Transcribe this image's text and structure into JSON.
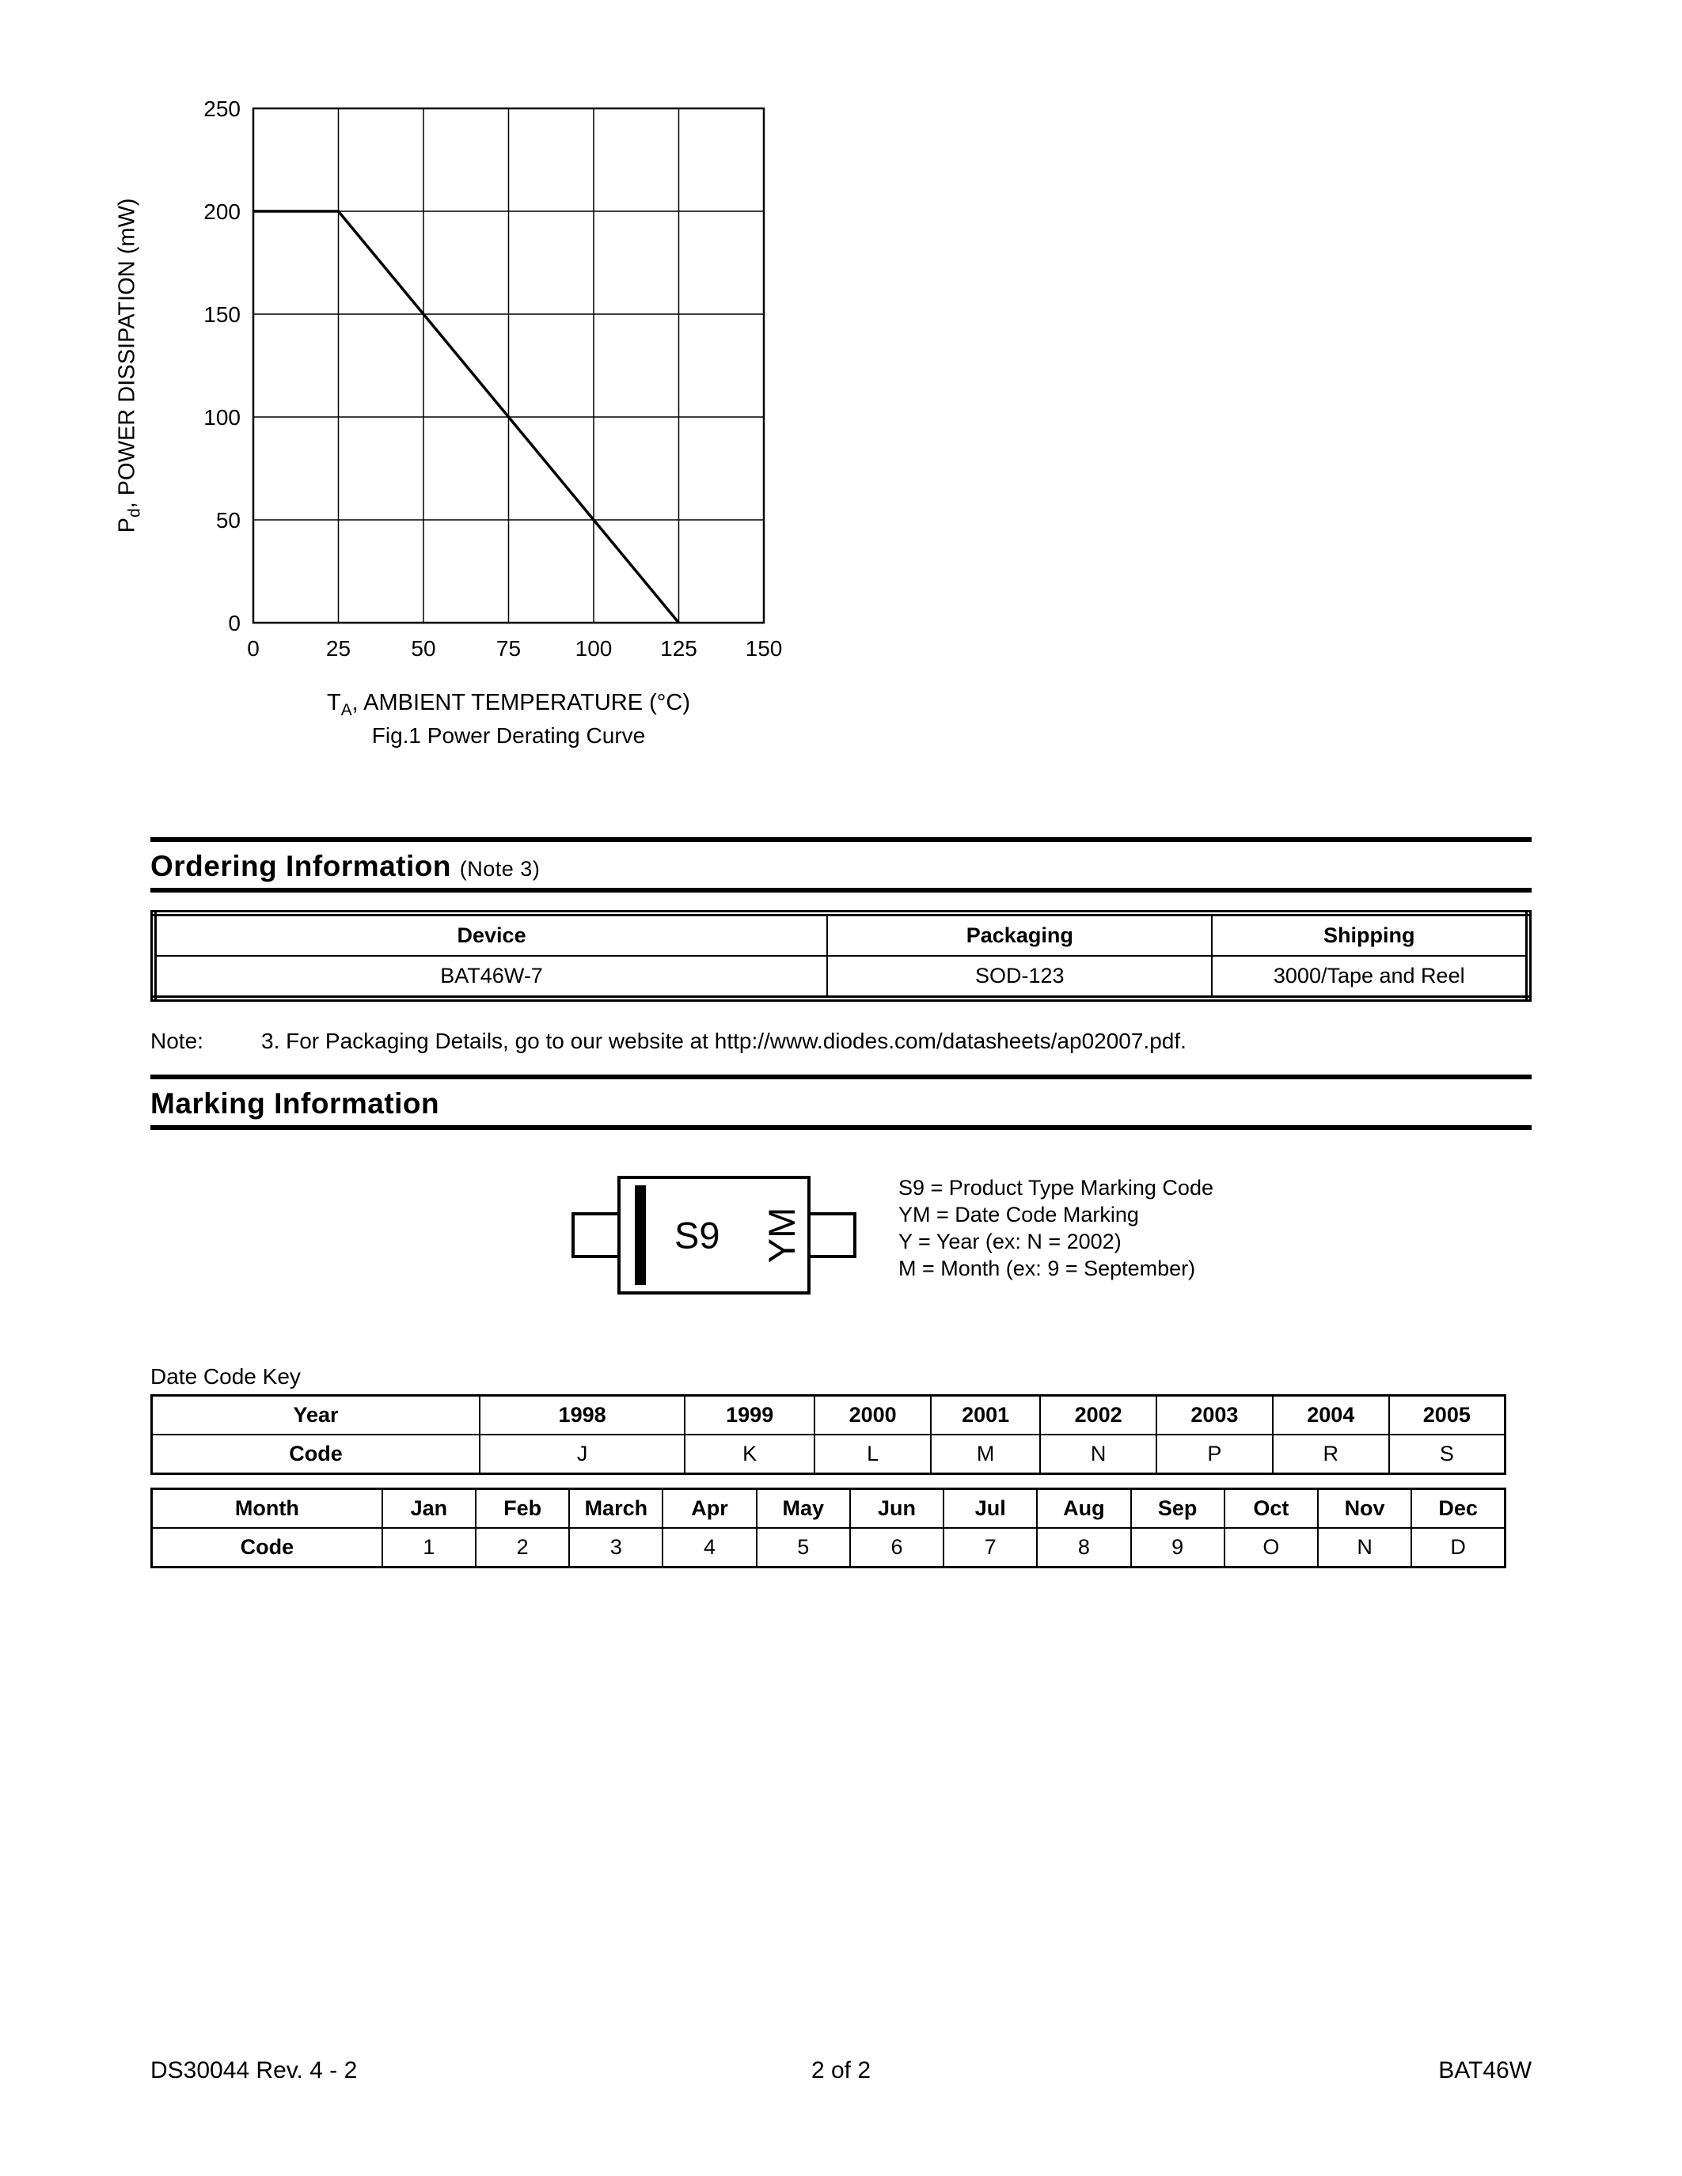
{
  "chart_data": {
    "type": "line",
    "title": "Fig.1  Power Derating Curve",
    "xlabel": "TA, AMBIENT TEMPERATURE (°C)",
    "ylabel": "Pd, POWER DISSIPATION (mW)",
    "xlabel_parts": {
      "main": "T",
      "sub": "A",
      "rest": ", AMBIENT TEMPERATURE (°C)"
    },
    "ylabel_parts": {
      "main": "P",
      "sub": "d",
      "rest": ", POWER DISSIPATION (mW)"
    },
    "xlim": [
      0,
      150
    ],
    "ylim": [
      0,
      250
    ],
    "xticks": [
      0,
      25,
      50,
      75,
      100,
      125,
      150
    ],
    "yticks": [
      0,
      50,
      100,
      150,
      200,
      250
    ],
    "grid": true,
    "legend_position": "none",
    "series": [
      {
        "name": "power-derating-curve",
        "points": [
          [
            0,
            200
          ],
          [
            25,
            200
          ],
          [
            125,
            0
          ]
        ]
      }
    ]
  },
  "ordering": {
    "heading": "Ordering Information",
    "heading_note": "(Note 3)",
    "headers": [
      "Device",
      "Packaging",
      "Shipping"
    ],
    "rows": [
      [
        "BAT46W-7",
        "SOD-123",
        "3000/Tape and Reel"
      ]
    ],
    "note": {
      "label": "Note:",
      "text_before": "3. For Packaging Details, go to our website at ",
      "url": "http://www.diodes.com/datasheets/ap02007.pdf",
      "text_after": "."
    }
  },
  "marking": {
    "heading": "Marking Information",
    "package_code": "S9",
    "package_date_code": "YM",
    "legend": [
      "S9 = Product Type Marking Code",
      "YM = Date Code Marking",
      "Y = Year (ex: N = 2002)",
      "M = Month (ex: 9 = September)"
    ],
    "date_code_key_label": "Date Code Key",
    "year_table": {
      "row1_label": "Year",
      "row2_label": "Code",
      "years": [
        "1998",
        "1999",
        "2000",
        "2001",
        "2002",
        "2003",
        "2004",
        "2005"
      ],
      "codes": [
        "J",
        "K",
        "L",
        "M",
        "N",
        "P",
        "R",
        "S"
      ]
    },
    "month_table": {
      "row1_label": "Month",
      "row2_label": "Code",
      "months": [
        "Jan",
        "Feb",
        "March",
        "Apr",
        "May",
        "Jun",
        "Jul",
        "Aug",
        "Sep",
        "Oct",
        "Nov",
        "Dec"
      ],
      "codes": [
        "1",
        "2",
        "3",
        "4",
        "5",
        "6",
        "7",
        "8",
        "9",
        "O",
        "N",
        "D"
      ]
    }
  },
  "footer": {
    "left": "DS30044 Rev. 4 - 2",
    "center": "2 of 2",
    "right": "BAT46W"
  }
}
